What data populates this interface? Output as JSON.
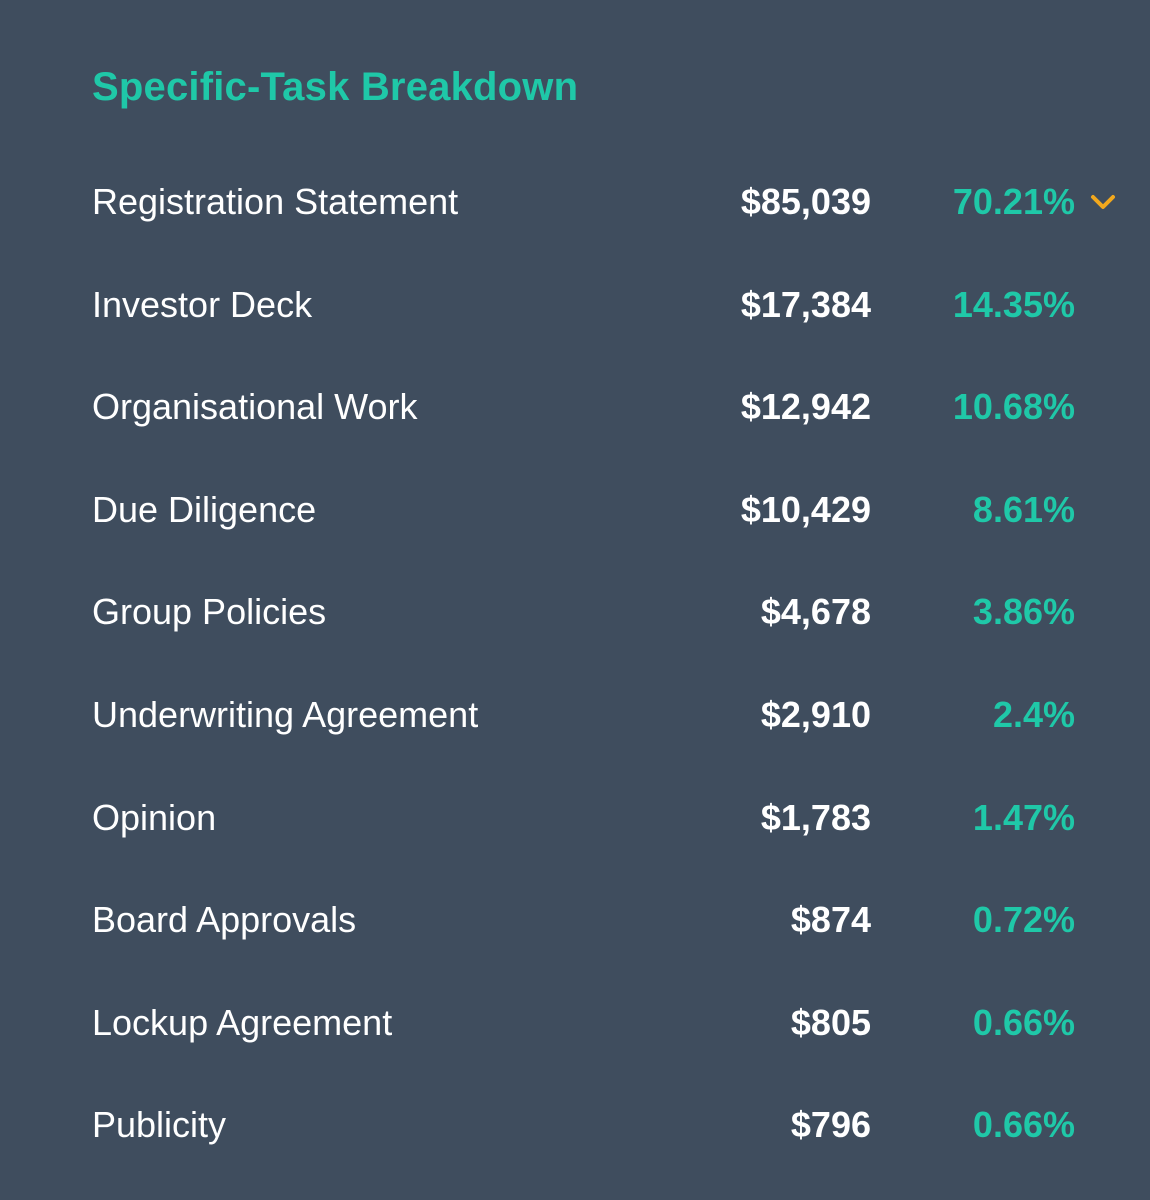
{
  "panel": {
    "title": "Specific-Task Breakdown"
  },
  "rows": [
    {
      "label": "Registration Statement",
      "amount": "$85,039",
      "percent": "70.21%"
    },
    {
      "label": "Investor Deck",
      "amount": "$17,384",
      "percent": "14.35%"
    },
    {
      "label": "Organisational Work",
      "amount": "$12,942",
      "percent": "10.68%"
    },
    {
      "label": "Due Diligence",
      "amount": "$10,429",
      "percent": "8.61%"
    },
    {
      "label": "Group Policies",
      "amount": "$4,678",
      "percent": "3.86%"
    },
    {
      "label": "Underwriting Agreement",
      "amount": "$2,910",
      "percent": "2.4%"
    },
    {
      "label": "Opinion",
      "amount": "$1,783",
      "percent": "1.47%"
    },
    {
      "label": "Board Approvals",
      "amount": "$874",
      "percent": "0.72%"
    },
    {
      "label": "Lockup Agreement",
      "amount": "$805",
      "percent": "0.66%"
    },
    {
      "label": "Publicity",
      "amount": "$796",
      "percent": "0.66%"
    }
  ],
  "icons": {
    "expand": "chevron-down-icon"
  },
  "colors": {
    "background": "#3f4d5e",
    "accent": "#1fc8a8",
    "text": "#ffffff",
    "chevron": "#f2a81d"
  }
}
